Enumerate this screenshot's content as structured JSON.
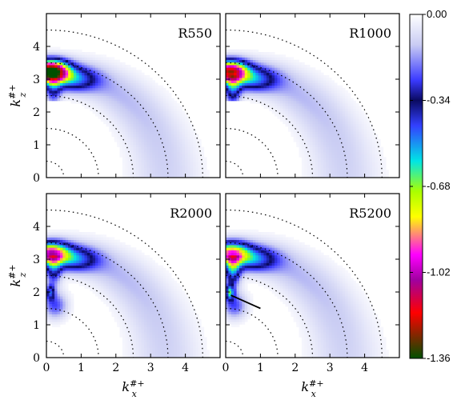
{
  "chart_data": {
    "type": "heatmap",
    "colorbar": {
      "ticks": [
        "0.00",
        "-0.34",
        "-0.68",
        "-1.02",
        "-1.36"
      ],
      "range": [
        -1.36,
        0.0
      ],
      "stops": [
        {
          "v": 0.0,
          "color": "#ffffff"
        },
        {
          "v": -0.12,
          "color": "#c9ccf3"
        },
        {
          "v": -0.26,
          "color": "#3a3aff"
        },
        {
          "v": -0.34,
          "color": "#0a0a60"
        },
        {
          "v": -0.44,
          "color": "#3340ff"
        },
        {
          "v": -0.58,
          "color": "#00e5e5"
        },
        {
          "v": -0.7,
          "color": "#aaff00"
        },
        {
          "v": -0.8,
          "color": "#ffff00"
        },
        {
          "v": -0.95,
          "color": "#ff00ff"
        },
        {
          "v": -1.05,
          "color": "#a000a0"
        },
        {
          "v": -1.18,
          "color": "#ff0000"
        },
        {
          "v": -1.36,
          "color": "#005000"
        }
      ]
    },
    "x_axis": {
      "label_base": "k",
      "label_sup": "#+",
      "label_sub": "x",
      "ticks": [
        "0",
        "1",
        "2",
        "3",
        "4"
      ],
      "range": [
        0,
        5
      ]
    },
    "y_axis": {
      "label_base": "k",
      "label_sup": "#+",
      "label_sub": "z",
      "ticks": [
        "0",
        "1",
        "2",
        "3",
        "4"
      ],
      "range": [
        0,
        5
      ]
    },
    "reference_circle_radii": [
      0.5,
      1.5,
      2.5,
      3.5,
      4.5
    ],
    "panels": [
      {
        "name": "R550",
        "peak_value": -1.36,
        "lower_arm_value": -0.55,
        "peak_center": [
          0.12,
          3.25
        ],
        "lower_lobe": false,
        "annotation_line": null
      },
      {
        "name": "R1000",
        "peak_value": -1.05,
        "lower_arm_value": -0.75,
        "peak_center": [
          0.12,
          3.25
        ],
        "lower_lobe": false,
        "annotation_line": null
      },
      {
        "name": "R2000",
        "peak_value": -0.82,
        "lower_arm_value": -0.65,
        "peak_center": [
          0.12,
          3.2
        ],
        "lower_lobe": true,
        "annotation_line": null
      },
      {
        "name": "R5200",
        "peak_value": -0.72,
        "lower_arm_value": -0.95,
        "peak_center": [
          0.15,
          3.2
        ],
        "lower_lobe": true,
        "annotation_line": [
          [
            0.15,
            1.9
          ],
          [
            1.0,
            1.5
          ]
        ]
      }
    ]
  }
}
